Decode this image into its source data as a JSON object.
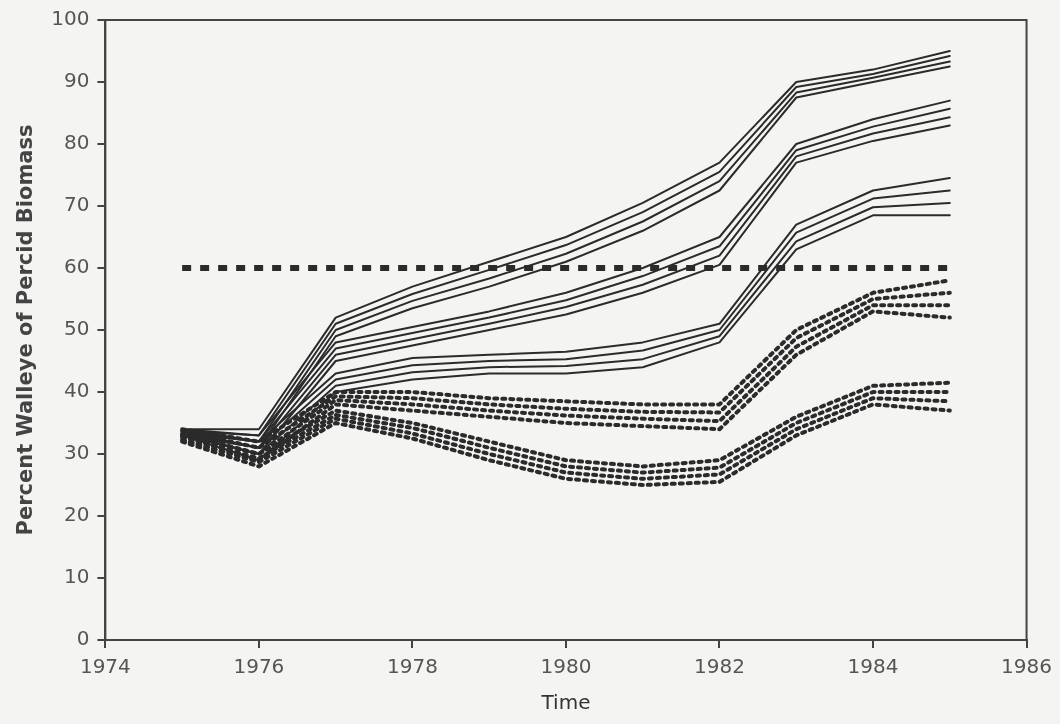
{
  "chart_data": {
    "type": "line",
    "xlabel": "Time",
    "ylabel": "Percent Walleye of Percid Biomass",
    "x": [
      1975,
      1976,
      1977,
      1978,
      1979,
      1980,
      1981,
      1982,
      1983,
      1984,
      1985
    ],
    "xlim": [
      1974,
      1986
    ],
    "xticks": [
      1974,
      1976,
      1978,
      1980,
      1982,
      1984,
      1986
    ],
    "ylim": [
      0,
      100
    ],
    "yticks": [
      0,
      10,
      20,
      30,
      40,
      50,
      60,
      70,
      80,
      90,
      100
    ],
    "grid": false,
    "legend": false,
    "marker": "none",
    "series": [
      {
        "color": "#2b2b2b",
        "line_style": "dashed",
        "values": [
          60,
          60,
          60,
          60,
          60,
          60,
          60,
          60,
          60,
          60,
          60
        ]
      },
      {
        "color": "#2b2b2b",
        "line_style": "solid",
        "values": [
          34,
          34,
          52,
          57,
          61,
          65,
          70.5,
          77,
          90,
          92,
          95
        ]
      },
      {
        "color": "#2b2b2b",
        "line_style": "solid",
        "values": [
          33.7,
          33,
          51,
          55.8,
          59.7,
          63.7,
          69,
          75.5,
          89.2,
          91.3,
          94.2
        ]
      },
      {
        "color": "#2b2b2b",
        "line_style": "solid",
        "values": [
          33.3,
          32,
          50,
          54.7,
          58.3,
          62.3,
          67.5,
          74,
          88.3,
          90.7,
          93.3
        ]
      },
      {
        "color": "#2b2b2b",
        "line_style": "solid",
        "values": [
          33,
          31,
          49,
          53.5,
          57,
          61,
          66,
          72.5,
          87.5,
          90,
          92.5
        ]
      },
      {
        "color": "#2b2b2b",
        "line_style": "solid",
        "values": [
          34,
          33,
          48,
          50.5,
          53,
          56,
          60,
          65,
          80,
          84,
          87
        ]
      },
      {
        "color": "#2b2b2b",
        "line_style": "solid",
        "values": [
          33.7,
          32,
          47,
          49.5,
          52,
          54.8,
          58.7,
          63.5,
          79,
          82.8,
          85.7
        ]
      },
      {
        "color": "#2b2b2b",
        "line_style": "solid",
        "values": [
          33.3,
          31,
          46,
          48.5,
          51,
          53.7,
          57.3,
          62,
          78,
          81.7,
          84.3
        ]
      },
      {
        "color": "#2b2b2b",
        "line_style": "solid",
        "values": [
          33,
          30,
          45,
          47.5,
          50,
          52.5,
          56,
          60.5,
          77,
          80.5,
          83
        ]
      },
      {
        "color": "#2b2b2b",
        "line_style": "solid",
        "values": [
          34,
          32,
          43,
          45.5,
          46,
          46.5,
          48,
          51,
          67,
          72.5,
          74.5
        ]
      },
      {
        "color": "#2b2b2b",
        "line_style": "solid",
        "values": [
          33.7,
          31,
          42,
          44.3,
          45,
          45.3,
          46.7,
          50,
          65.7,
          71.2,
          72.5
        ]
      },
      {
        "color": "#2b2b2b",
        "line_style": "solid",
        "values": [
          33.3,
          30,
          41,
          43.2,
          44,
          44.2,
          45.3,
          49,
          64.3,
          69.8,
          70.5
        ]
      },
      {
        "color": "#2b2b2b",
        "line_style": "solid",
        "values": [
          33,
          29,
          40,
          42,
          43,
          43,
          44,
          48,
          63,
          68.5,
          68.5
        ]
      },
      {
        "color": "#2b2b2b",
        "line_style": "dotted",
        "values": [
          34,
          32,
          40,
          40,
          39,
          38.5,
          38,
          38,
          50,
          56,
          58
        ]
      },
      {
        "color": "#2b2b2b",
        "line_style": "dotted",
        "values": [
          33.7,
          31,
          39.3,
          39,
          38,
          37.3,
          36.8,
          36.7,
          48.7,
          55,
          56
        ]
      },
      {
        "color": "#2b2b2b",
        "line_style": "dotted",
        "values": [
          33.3,
          30,
          38.7,
          38,
          37,
          36.2,
          35.7,
          35.3,
          47.3,
          54,
          54
        ]
      },
      {
        "color": "#2b2b2b",
        "line_style": "dotted",
        "values": [
          33,
          29,
          38,
          37,
          36,
          35,
          34.5,
          34,
          46,
          53,
          52
        ]
      },
      {
        "color": "#2b2b2b",
        "line_style": "dotted",
        "values": [
          33,
          30,
          37,
          35,
          32,
          29,
          28,
          29,
          36,
          41,
          41.5
        ]
      },
      {
        "color": "#2b2b2b",
        "line_style": "dotted",
        "values": [
          32.7,
          29.3,
          36.3,
          34.2,
          31,
          28,
          27,
          27.8,
          35,
          40,
          40
        ]
      },
      {
        "color": "#2b2b2b",
        "line_style": "dotted",
        "values": [
          32.3,
          28.7,
          35.7,
          33.3,
          30,
          27,
          26,
          26.7,
          34,
          39,
          38.5
        ]
      },
      {
        "color": "#2b2b2b",
        "line_style": "dotted",
        "values": [
          32,
          28,
          35,
          32.5,
          29,
          26,
          25,
          25.5,
          33,
          38,
          37
        ]
      }
    ]
  }
}
